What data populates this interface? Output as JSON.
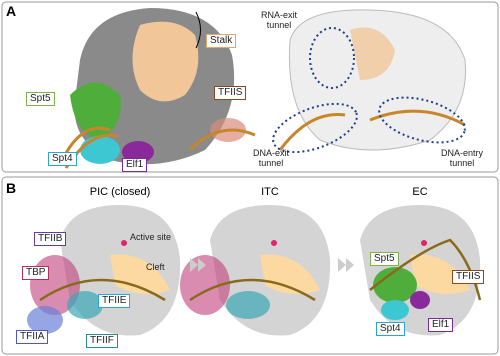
{
  "panel_a": {
    "label": "A",
    "left_labels": {
      "stalk": "Stalk",
      "spt5": "Spt5",
      "tfiis": "TFIIS",
      "spt4": "Spt4",
      "elf1": "Elf1"
    },
    "right_labels": {
      "rna_exit": "RNA-exit tunnel",
      "dna_exit": "DNA-exit tunnel",
      "dna_entry": "DNA-entry tunnel"
    }
  },
  "panel_b": {
    "label": "B",
    "states": [
      {
        "title": "PIC (closed)",
        "labels": [
          "Active site",
          "TFIIB",
          "Cleft",
          "TBP",
          "TFIIE",
          "TFIIA",
          "TFIIF"
        ]
      },
      {
        "title": "ITC"
      },
      {
        "title": "EC",
        "labels": [
          "Spt5",
          "TFIIS",
          "Spt4",
          "Elf1"
        ]
      }
    ]
  }
}
